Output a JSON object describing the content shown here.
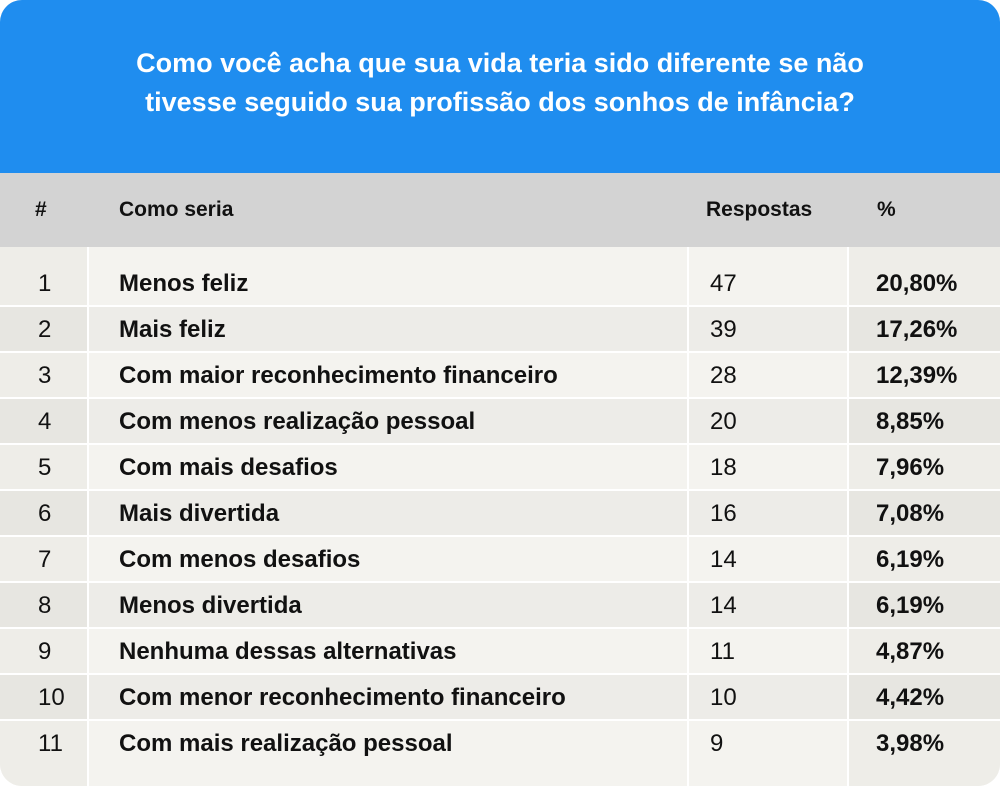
{
  "title": {
    "line1": "Como você acha que sua vida teria sido diferente se não",
    "line2": "tivesse seguido sua profissão dos sonhos de infância?"
  },
  "colors": {
    "header_bg": "#1f8def",
    "header_text": "#ffffff",
    "thead_bg": "#d3d3d3",
    "row_bg": "#f4f3ef"
  },
  "columns": {
    "rank": "#",
    "label": "Como seria",
    "responses": "Respostas",
    "percent": "%"
  },
  "chart_data": {
    "type": "table",
    "title": "Como você acha que sua vida teria sido diferente se não tivesse seguido sua profissão dos sonhos de infância?",
    "columns": [
      "#",
      "Como seria",
      "Respostas",
      "%"
    ],
    "rows": [
      {
        "rank": "1",
        "label": "Menos feliz",
        "responses": "47",
        "percent": "20,80%"
      },
      {
        "rank": "2",
        "label": "Mais feliz",
        "responses": "39",
        "percent": "17,26%"
      },
      {
        "rank": "3",
        "label": "Com maior reconhecimento financeiro",
        "responses": "28",
        "percent": "12,39%"
      },
      {
        "rank": "4",
        "label": "Com menos realização pessoal",
        "responses": "20",
        "percent": "8,85%"
      },
      {
        "rank": "5",
        "label": "Com mais desafios",
        "responses": "18",
        "percent": "7,96%"
      },
      {
        "rank": "6",
        "label": "Mais divertida",
        "responses": "16",
        "percent": "7,08%"
      },
      {
        "rank": "7",
        "label": "Com menos desafios",
        "responses": "14",
        "percent": "6,19%"
      },
      {
        "rank": "8",
        "label": "Menos divertida",
        "responses": "14",
        "percent": "6,19%"
      },
      {
        "rank": "9",
        "label": "Nenhuma dessas alternativas",
        "responses": "11",
        "percent": "4,87%"
      },
      {
        "rank": "10",
        "label": "Com menor reconhecimento financeiro",
        "responses": "10",
        "percent": "4,42%"
      },
      {
        "rank": "11",
        "label": "Com mais realização pessoal",
        "responses": "9",
        "percent": "3,98%"
      }
    ]
  }
}
